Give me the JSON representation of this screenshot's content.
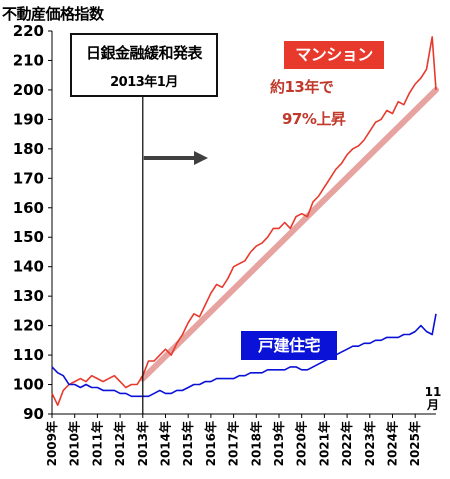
{
  "chart_data": {
    "type": "line",
    "title": "",
    "ylabel": "不動産価格指数",
    "xlabel": "",
    "ylim": [
      90,
      220
    ],
    "yticks": [
      90,
      100,
      110,
      120,
      130,
      140,
      150,
      160,
      170,
      180,
      190,
      200,
      210,
      220
    ],
    "x_range": [
      2009.0,
      2025.917
    ],
    "x_ticks": [
      "2009年",
      "2010年",
      "2011年",
      "2012年",
      "2013年",
      "2014年",
      "2015年",
      "2016年",
      "2017年",
      "2018年",
      "2019年",
      "2020年",
      "2021年",
      "2022年",
      "2023年",
      "2024年",
      "2025年"
    ],
    "x_end_label": "11月",
    "grid": false,
    "annotation": {
      "line1": "日銀金融緩和発表",
      "line2": "2013年1月",
      "x": 2013.0
    },
    "series": [
      {
        "name": "マンション",
        "color": "#e8392d",
        "trend_note_1": "約13年で",
        "trend_note_2": "97%上昇",
        "points": [
          [
            2009.0,
            97
          ],
          [
            2009.25,
            93
          ],
          [
            2009.5,
            98
          ],
          [
            2009.75,
            100
          ],
          [
            2010.0,
            101
          ],
          [
            2010.25,
            102
          ],
          [
            2010.5,
            101
          ],
          [
            2010.75,
            103
          ],
          [
            2011.0,
            102
          ],
          [
            2011.25,
            101
          ],
          [
            2011.5,
            102
          ],
          [
            2011.75,
            103
          ],
          [
            2012.0,
            101
          ],
          [
            2012.25,
            99
          ],
          [
            2012.5,
            100
          ],
          [
            2012.75,
            100
          ],
          [
            2013.0,
            103
          ],
          [
            2013.25,
            108
          ],
          [
            2013.5,
            108
          ],
          [
            2013.75,
            110
          ],
          [
            2014.0,
            112
          ],
          [
            2014.25,
            110
          ],
          [
            2014.5,
            114
          ],
          [
            2014.75,
            117
          ],
          [
            2015.0,
            121
          ],
          [
            2015.25,
            124
          ],
          [
            2015.5,
            123
          ],
          [
            2015.75,
            127
          ],
          [
            2016.0,
            131
          ],
          [
            2016.25,
            134
          ],
          [
            2016.5,
            133
          ],
          [
            2016.75,
            136
          ],
          [
            2017.0,
            140
          ],
          [
            2017.25,
            141
          ],
          [
            2017.5,
            142
          ],
          [
            2017.75,
            145
          ],
          [
            2018.0,
            147
          ],
          [
            2018.25,
            148
          ],
          [
            2018.5,
            150
          ],
          [
            2018.75,
            153
          ],
          [
            2019.0,
            153
          ],
          [
            2019.25,
            155
          ],
          [
            2019.5,
            153
          ],
          [
            2019.75,
            157
          ],
          [
            2020.0,
            158
          ],
          [
            2020.25,
            157
          ],
          [
            2020.5,
            162
          ],
          [
            2020.75,
            164
          ],
          [
            2021.0,
            167
          ],
          [
            2021.25,
            170
          ],
          [
            2021.5,
            173
          ],
          [
            2021.75,
            175
          ],
          [
            2022.0,
            178
          ],
          [
            2022.25,
            180
          ],
          [
            2022.5,
            181
          ],
          [
            2022.75,
            183
          ],
          [
            2023.0,
            186
          ],
          [
            2023.25,
            189
          ],
          [
            2023.5,
            190
          ],
          [
            2023.75,
            193
          ],
          [
            2024.0,
            192
          ],
          [
            2024.25,
            196
          ],
          [
            2024.5,
            195
          ],
          [
            2024.75,
            199
          ],
          [
            2025.0,
            202
          ],
          [
            2025.25,
            204
          ],
          [
            2025.5,
            207
          ],
          [
            2025.75,
            218
          ],
          [
            2025.917,
            200
          ]
        ]
      },
      {
        "name": "戸建住宅",
        "color": "#0a12d8",
        "points": [
          [
            2009.0,
            106
          ],
          [
            2009.25,
            104
          ],
          [
            2009.5,
            103
          ],
          [
            2009.75,
            100
          ],
          [
            2010.0,
            100
          ],
          [
            2010.25,
            99
          ],
          [
            2010.5,
            100
          ],
          [
            2010.75,
            99
          ],
          [
            2011.0,
            99
          ],
          [
            2011.25,
            98
          ],
          [
            2011.5,
            98
          ],
          [
            2011.75,
            98
          ],
          [
            2012.0,
            97
          ],
          [
            2012.25,
            97
          ],
          [
            2012.5,
            96
          ],
          [
            2012.75,
            96
          ],
          [
            2013.0,
            96
          ],
          [
            2013.25,
            96
          ],
          [
            2013.5,
            97
          ],
          [
            2013.75,
            98
          ],
          [
            2014.0,
            97
          ],
          [
            2014.25,
            97
          ],
          [
            2014.5,
            98
          ],
          [
            2014.75,
            98
          ],
          [
            2015.0,
            99
          ],
          [
            2015.25,
            100
          ],
          [
            2015.5,
            100
          ],
          [
            2015.75,
            101
          ],
          [
            2016.0,
            101
          ],
          [
            2016.25,
            102
          ],
          [
            2016.5,
            102
          ],
          [
            2016.75,
            102
          ],
          [
            2017.0,
            102
          ],
          [
            2017.25,
            103
          ],
          [
            2017.5,
            103
          ],
          [
            2017.75,
            104
          ],
          [
            2018.0,
            104
          ],
          [
            2018.25,
            104
          ],
          [
            2018.5,
            105
          ],
          [
            2018.75,
            105
          ],
          [
            2019.0,
            105
          ],
          [
            2019.25,
            105
          ],
          [
            2019.5,
            106
          ],
          [
            2019.75,
            106
          ],
          [
            2020.0,
            105
          ],
          [
            2020.25,
            105
          ],
          [
            2020.5,
            106
          ],
          [
            2020.75,
            107
          ],
          [
            2021.0,
            108
          ],
          [
            2021.25,
            109
          ],
          [
            2021.5,
            110
          ],
          [
            2021.75,
            111
          ],
          [
            2022.0,
            112
          ],
          [
            2022.25,
            113
          ],
          [
            2022.5,
            113
          ],
          [
            2022.75,
            114
          ],
          [
            2023.0,
            114
          ],
          [
            2023.25,
            115
          ],
          [
            2023.5,
            115
          ],
          [
            2023.75,
            116
          ],
          [
            2024.0,
            116
          ],
          [
            2024.25,
            116
          ],
          [
            2024.5,
            117
          ],
          [
            2024.75,
            117
          ],
          [
            2025.0,
            118
          ],
          [
            2025.25,
            120
          ],
          [
            2025.5,
            118
          ],
          [
            2025.75,
            117
          ],
          [
            2025.917,
            124
          ]
        ]
      }
    ],
    "trend": {
      "color": "#e6a3a0",
      "from": [
        2013.0,
        102
      ],
      "to": [
        2025.917,
        200
      ]
    }
  }
}
